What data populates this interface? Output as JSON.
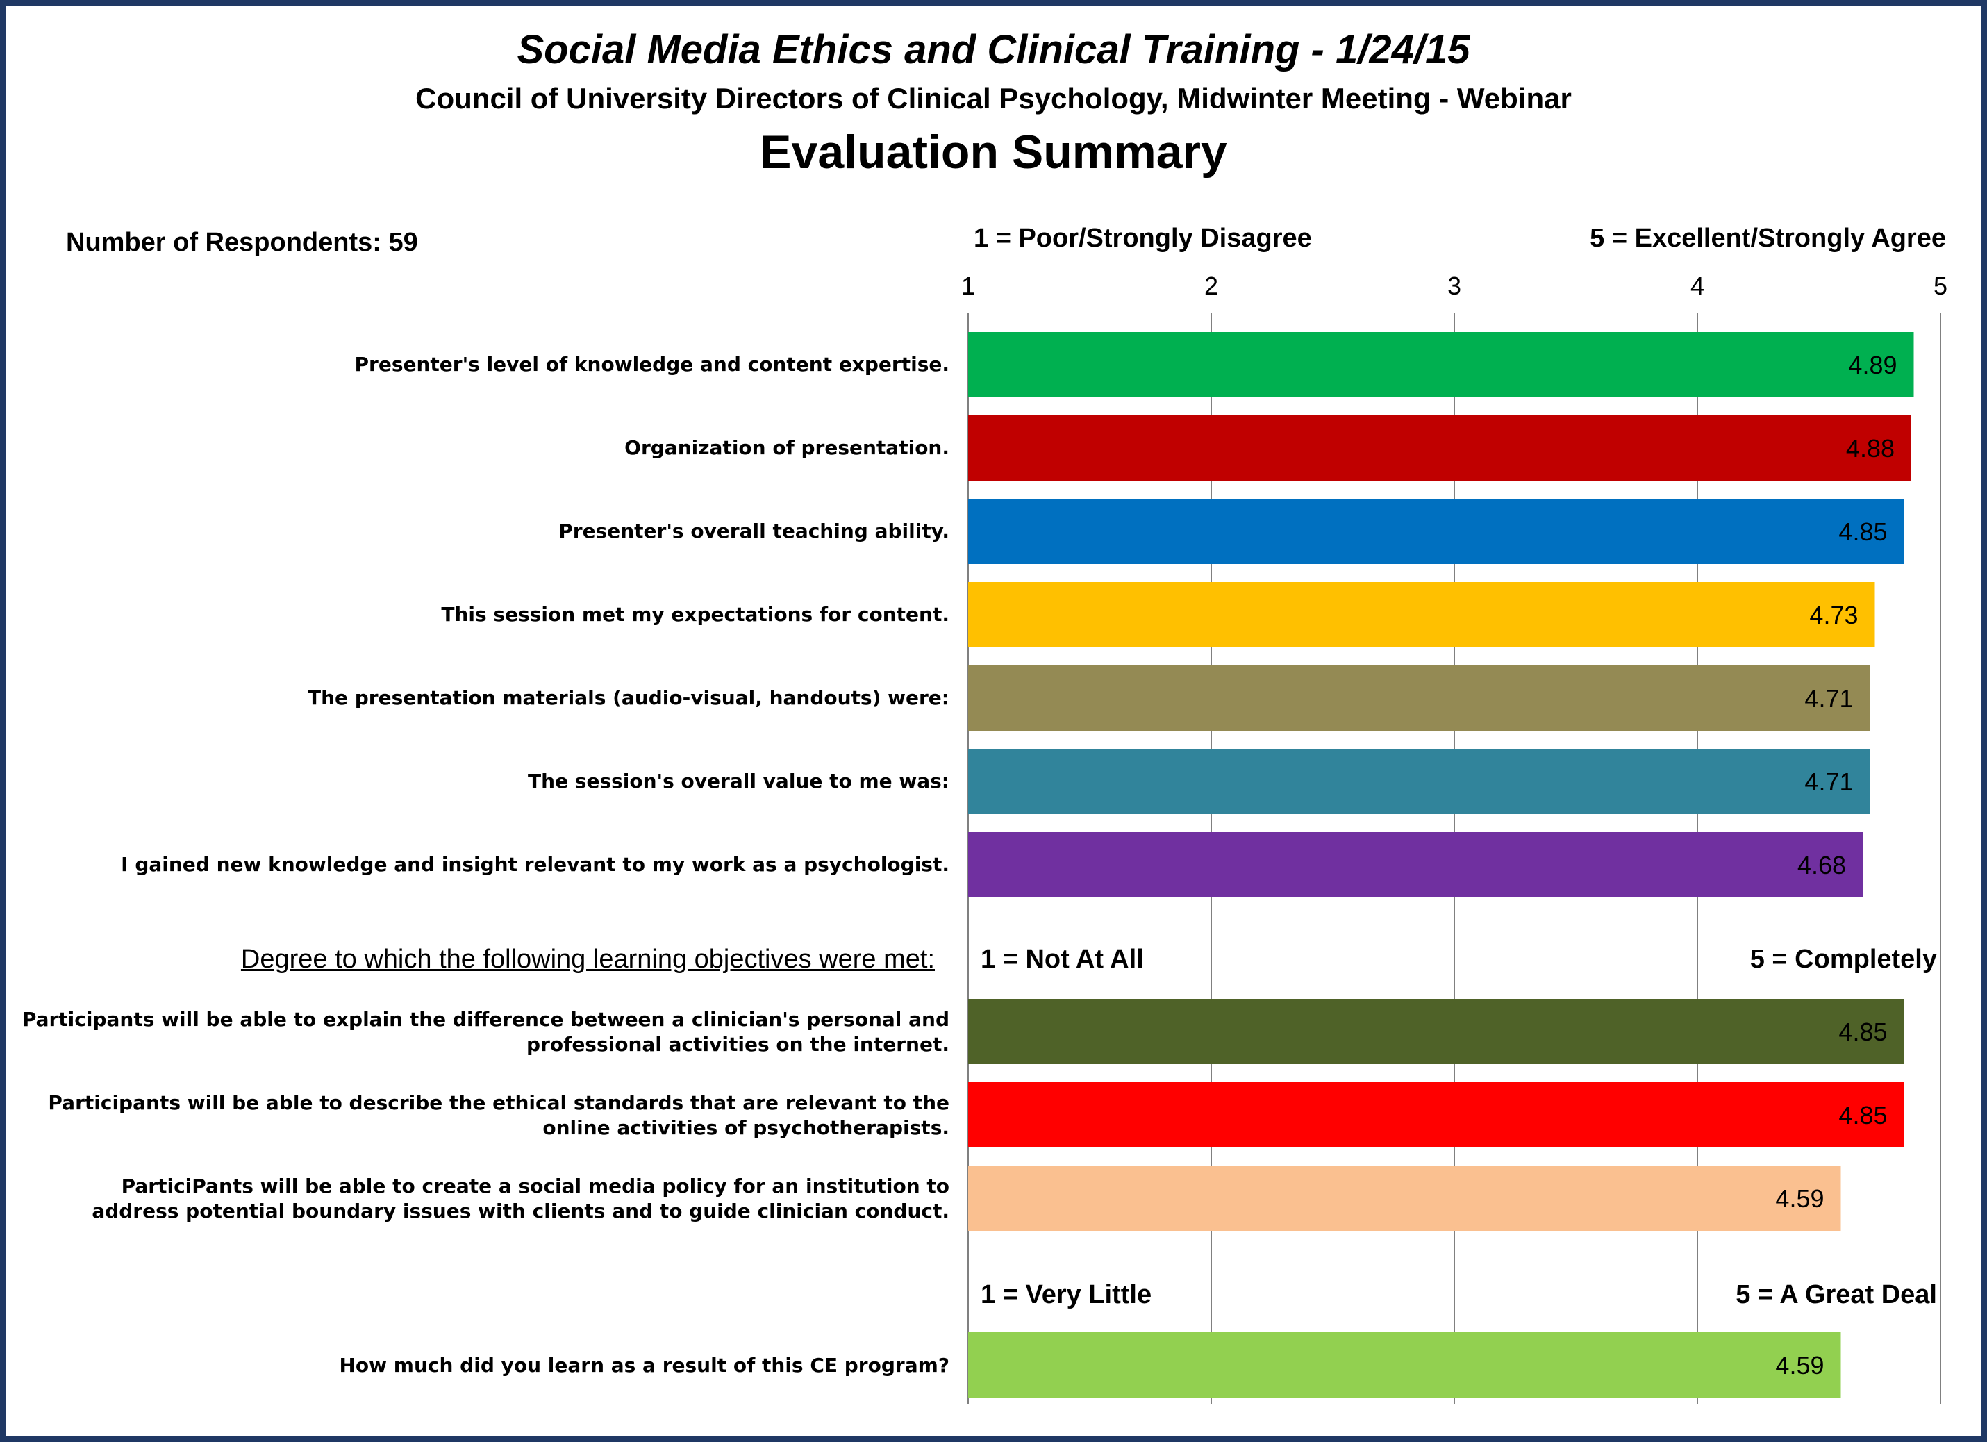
{
  "header": {
    "title": "Social Media Ethics and Clinical Training - 1/24/15",
    "subtitle": "Council of University Directors of Clinical Psychology, Midwinter Meeting - Webinar",
    "heading": "Evaluation Summary"
  },
  "respondents_label": "Number of Respondents: 59",
  "scale_labels": {
    "group1_low": "1 = Poor/Strongly Disagree",
    "group1_high": "5 = Excellent/Strongly Agree",
    "group2_heading": "Degree to which the following learning objectives were met:",
    "group2_low": "1 = Not At All",
    "group2_high": "5 = Completely",
    "group3_low": "1 = Very Little",
    "group3_high": "5 = A Great Deal"
  },
  "chart_data": {
    "type": "bar",
    "orientation": "horizontal",
    "xlim": [
      1,
      5
    ],
    "x_ticks": [
      "1",
      "2",
      "3",
      "4",
      "5"
    ],
    "grid": true,
    "data_labels": true,
    "categories": [
      "Presenter's level of knowledge and content expertise.",
      "Organization of presentation.",
      "Presenter's overall teaching ability.",
      "This session met my expectations for content.",
      "The presentation materials (audio-visual, handouts) were:",
      "The session's overall value to me was:",
      "I gained new knowledge and insight relevant to my work as a psychologist.",
      "Participants will be able to explain the difference between a clinician's personal and professional activities on the internet.",
      "Participants will be able to describe the ethical standards that are relevant to the online activities of psychotherapists.",
      "ParticiPants will be able to create a social media policy for an institution to address potential boundary issues with clients and to guide clinician conduct.",
      "How much did you learn as a result of this CE program?"
    ],
    "values": [
      4.89,
      4.88,
      4.85,
      4.73,
      4.71,
      4.71,
      4.68,
      4.85,
      4.85,
      4.59,
      4.59
    ],
    "value_labels": [
      "4.89",
      "4.88",
      "4.85",
      "4.73",
      "4.71",
      "4.71",
      "4.68",
      "4.85",
      "4.85",
      "4.59",
      "4.59"
    ],
    "colors": [
      "#00B050",
      "#C00000",
      "#0070C0",
      "#FFC000",
      "#948A54",
      "#31849B",
      "#7030A0",
      "#4F6228",
      "#FF0000",
      "#FAC090",
      "#92D050"
    ]
  }
}
